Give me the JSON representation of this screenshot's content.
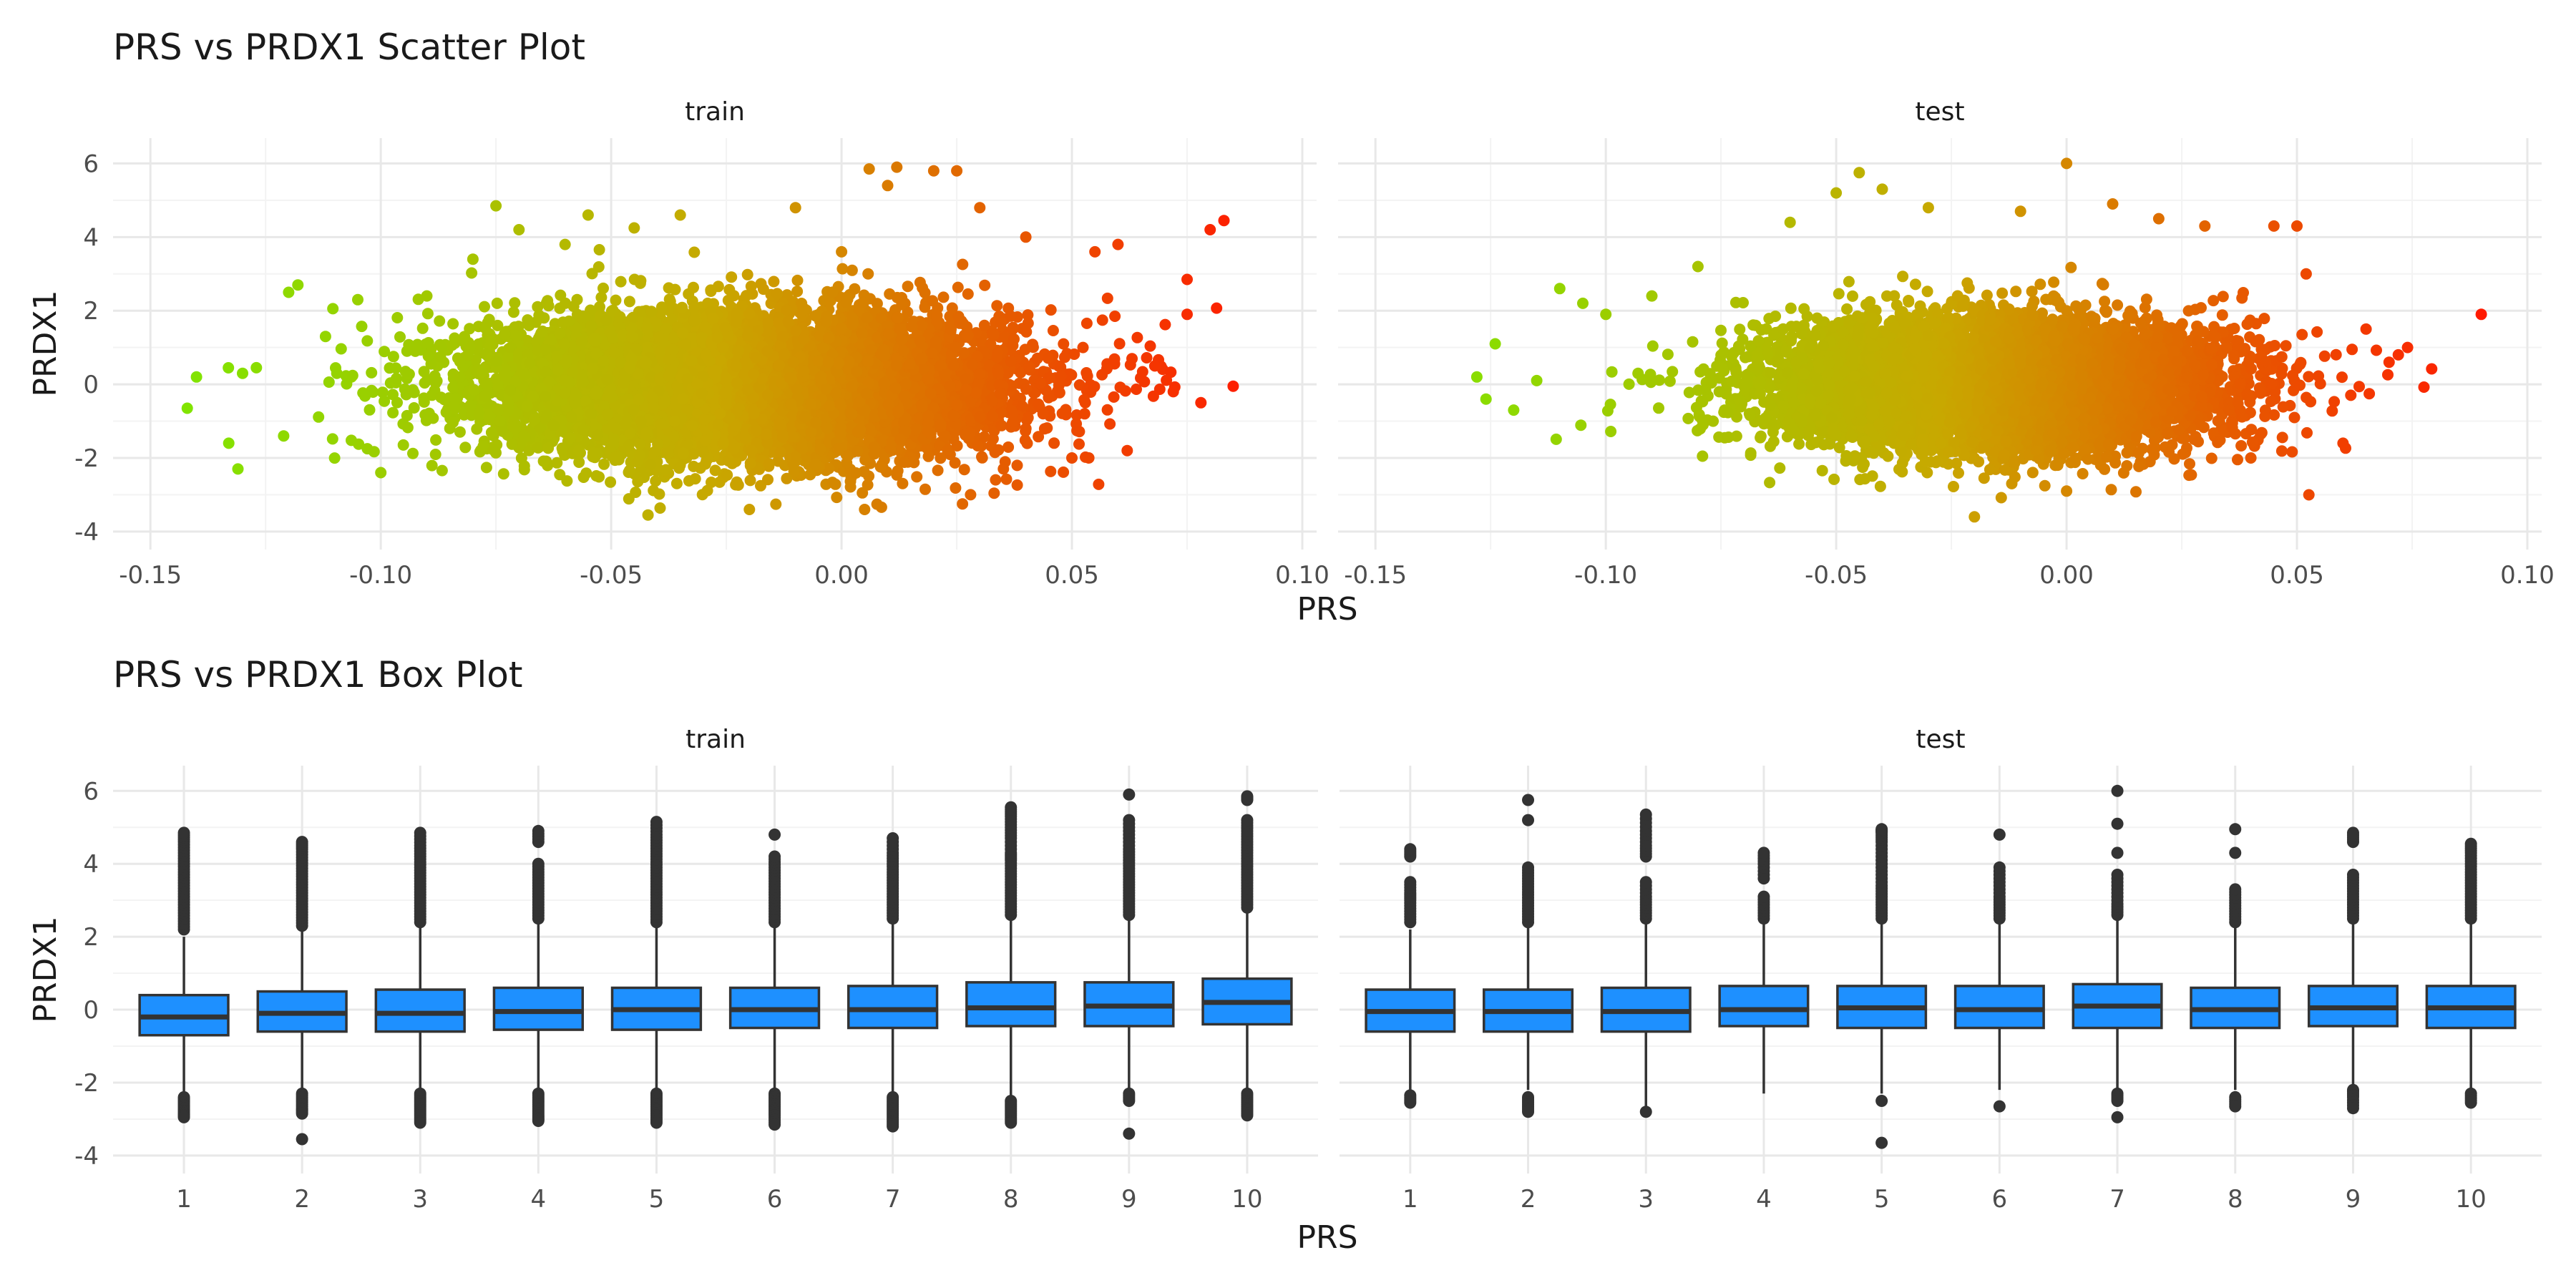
{
  "scatter_title": "PRS vs PRDX1 Scatter Plot",
  "box_title": "PRS vs PRDX1 Box Plot",
  "xlabel": "PRS",
  "ylabel": "PRDX1",
  "colors": {
    "scatter_low": "#7fe600",
    "scatter_mid": "#c8a800",
    "scatter_high": "#ff1a00",
    "box_fill": "#1e90ff",
    "box_line": "#333333",
    "grid_major": "#e8e8e8",
    "grid_minor": "#f3f3f3"
  },
  "chart_data": [
    {
      "type": "scatter",
      "title": "PRS vs PRDX1 Scatter Plot",
      "xlabel": "PRS",
      "ylabel": "PRDX1",
      "xlim": [
        -0.155,
        0.1
      ],
      "ylim": [
        -4.1,
        6.3
      ],
      "x_ticks": [
        "-0.15",
        "-0.10",
        "-0.05",
        "0.00",
        "0.05",
        "0.10"
      ],
      "x_tick_values": [
        -0.15,
        -0.1,
        -0.05,
        0.0,
        0.05,
        0.1
      ],
      "y_ticks": [
        "-4",
        "-2",
        "0",
        "2",
        "4",
        "6"
      ],
      "y_tick_values": [
        -4,
        -2,
        0,
        2,
        4,
        6
      ],
      "color_scale": "gradient green (low PRS) to red (high PRS)",
      "grid": true,
      "facets": [
        {
          "name": "train",
          "x_distribution": {
            "mean": -0.02,
            "sd": 0.028
          },
          "y_distribution": {
            "mean": 0.0,
            "sd": 0.95
          },
          "points": [
            [
              -0.142,
              -0.65
            ],
            [
              -0.14,
              0.2
            ],
            [
              -0.133,
              -1.6
            ],
            [
              -0.131,
              -2.3
            ],
            [
              -0.13,
              0.3
            ],
            [
              -0.127,
              0.45
            ],
            [
              -0.118,
              2.7
            ],
            [
              -0.12,
              2.5
            ],
            [
              -0.112,
              1.3
            ],
            [
              -0.105,
              2.3
            ],
            [
              -0.1,
              -2.4
            ],
            [
              -0.09,
              2.4
            ],
            [
              -0.08,
              3.4
            ],
            [
              -0.075,
              4.85
            ],
            [
              -0.07,
              4.2
            ],
            [
              -0.06,
              3.8
            ],
            [
              -0.055,
              4.6
            ],
            [
              -0.045,
              4.25
            ],
            [
              -0.042,
              -3.55
            ],
            [
              -0.035,
              4.6
            ],
            [
              -0.02,
              -3.4
            ],
            [
              -0.01,
              4.8
            ],
            [
              0.0,
              3.6
            ],
            [
              0.005,
              -3.4
            ],
            [
              0.01,
              5.4
            ],
            [
              0.028,
              -3.0
            ],
            [
              0.03,
              4.8
            ],
            [
              0.04,
              4.0
            ],
            [
              0.05,
              -2.0
            ],
            [
              0.055,
              3.6
            ],
            [
              0.06,
              3.8
            ],
            [
              0.062,
              -1.8
            ],
            [
              0.068,
              0.5
            ],
            [
              0.072,
              -0.2
            ],
            [
              0.075,
              2.85
            ],
            [
              0.075,
              1.9
            ],
            [
              0.078,
              -0.5
            ],
            [
              0.08,
              4.2
            ],
            [
              0.083,
              4.45
            ],
            [
              0.085,
              -0.05
            ],
            [
              0.012,
              5.9
            ],
            [
              0.02,
              5.8
            ],
            [
              0.025,
              5.8
            ],
            [
              0.006,
              5.85
            ]
          ]
        },
        {
          "name": "test",
          "x_distribution": {
            "mean": -0.015,
            "sd": 0.025
          },
          "y_distribution": {
            "mean": 0.0,
            "sd": 0.9
          },
          "points": [
            [
              -0.128,
              0.2
            ],
            [
              -0.126,
              -0.4
            ],
            [
              -0.124,
              1.1
            ],
            [
              -0.12,
              -0.7
            ],
            [
              -0.115,
              0.1
            ],
            [
              -0.11,
              2.6
            ],
            [
              -0.105,
              2.2
            ],
            [
              -0.1,
              1.9
            ],
            [
              -0.09,
              2.4
            ],
            [
              -0.08,
              3.2
            ],
            [
              -0.06,
              4.4
            ],
            [
              -0.05,
              5.2
            ],
            [
              -0.045,
              5.75
            ],
            [
              -0.04,
              5.3
            ],
            [
              -0.03,
              4.8
            ],
            [
              -0.02,
              -3.6
            ],
            [
              -0.01,
              4.7
            ],
            [
              0.0,
              6.0
            ],
            [
              0.0,
              -2.9
            ],
            [
              0.01,
              4.9
            ],
            [
              0.02,
              4.5
            ],
            [
              0.03,
              4.3
            ],
            [
              0.04,
              -2.0
            ],
            [
              0.045,
              4.3
            ],
            [
              0.05,
              4.3
            ],
            [
              0.052,
              3.0
            ],
            [
              0.06,
              -1.6
            ],
            [
              0.065,
              1.5
            ],
            [
              0.07,
              0.6
            ],
            [
              0.072,
              0.8
            ],
            [
              0.074,
              1.0
            ],
            [
              0.09,
              1.9
            ]
          ]
        }
      ]
    },
    {
      "type": "box",
      "title": "PRS vs PRDX1 Box Plot",
      "xlabel": "PRS",
      "ylabel": "PRDX1",
      "categories": [
        "1",
        "2",
        "3",
        "4",
        "5",
        "6",
        "7",
        "8",
        "9",
        "10"
      ],
      "ylim": [
        -4.1,
        6.3
      ],
      "y_ticks": [
        "-4",
        "-2",
        "0",
        "2",
        "4",
        "6"
      ],
      "y_tick_values": [
        -4,
        -2,
        0,
        2,
        4,
        6
      ],
      "grid": true,
      "facets": [
        {
          "name": "train",
          "boxes": [
            {
              "q1": -0.7,
              "median": -0.2,
              "q3": 0.4,
              "whisker_low": -2.3,
              "whisker_high": 2.0,
              "outliers": [
                2.2,
                2.5,
                2.8,
                3.1,
                3.4,
                3.7,
                4.0,
                4.3,
                4.6,
                4.85,
                -2.4,
                -2.55,
                -2.7,
                -2.85,
                -2.95
              ]
            },
            {
              "q1": -0.6,
              "median": -0.1,
              "q3": 0.5,
              "whisker_low": -2.2,
              "whisker_high": 2.2,
              "outliers": [
                2.3,
                2.6,
                2.9,
                3.2,
                3.5,
                3.8,
                4.1,
                4.4,
                4.6,
                -2.3,
                -2.5,
                -2.7,
                -2.85,
                -3.55
              ]
            },
            {
              "q1": -0.6,
              "median": -0.1,
              "q3": 0.55,
              "whisker_low": -2.2,
              "whisker_high": 2.3,
              "outliers": [
                2.4,
                2.7,
                3.0,
                3.3,
                3.6,
                3.9,
                4.2,
                4.5,
                4.85,
                -2.3,
                -2.5,
                -2.7,
                -2.9,
                -3.1
              ]
            },
            {
              "q1": -0.55,
              "median": -0.05,
              "q3": 0.6,
              "whisker_low": -2.2,
              "whisker_high": 2.4,
              "outliers": [
                2.5,
                2.8,
                3.1,
                3.4,
                3.7,
                4.0,
                4.6,
                4.9,
                -2.3,
                -2.5,
                -2.7,
                -2.9,
                -3.05
              ]
            },
            {
              "q1": -0.55,
              "median": 0.0,
              "q3": 0.6,
              "whisker_low": -2.2,
              "whisker_high": 2.3,
              "outliers": [
                2.4,
                2.7,
                3.0,
                3.3,
                3.6,
                3.9,
                4.2,
                4.5,
                4.8,
                5.15,
                -2.3,
                -2.5,
                -2.7,
                -2.9,
                -3.1
              ]
            },
            {
              "q1": -0.5,
              "median": 0.0,
              "q3": 0.6,
              "whisker_low": -2.2,
              "whisker_high": 2.3,
              "outliers": [
                2.4,
                2.7,
                3.0,
                3.3,
                3.6,
                3.9,
                4.2,
                4.8,
                -2.3,
                -2.5,
                -2.7,
                -2.9,
                -3.15
              ]
            },
            {
              "q1": -0.5,
              "median": 0.0,
              "q3": 0.65,
              "whisker_low": -2.3,
              "whisker_high": 2.4,
              "outliers": [
                2.5,
                2.8,
                3.1,
                3.4,
                3.7,
                4.0,
                4.3,
                4.7,
                -2.4,
                -2.6,
                -2.8,
                -3.0,
                -3.2
              ]
            },
            {
              "q1": -0.45,
              "median": 0.05,
              "q3": 0.75,
              "whisker_low": -2.4,
              "whisker_high": 2.5,
              "outliers": [
                2.6,
                2.9,
                3.2,
                3.5,
                3.8,
                4.1,
                4.3,
                4.7,
                5.0,
                5.3,
                5.55,
                -2.5,
                -2.7,
                -2.9,
                -3.1
              ]
            },
            {
              "q1": -0.45,
              "median": 0.1,
              "q3": 0.75,
              "whisker_low": -2.2,
              "whisker_high": 2.5,
              "outliers": [
                2.6,
                2.9,
                3.2,
                3.5,
                3.8,
                4.1,
                4.4,
                4.8,
                5.2,
                5.9,
                -2.3,
                -2.5,
                -3.4
              ]
            },
            {
              "q1": -0.4,
              "median": 0.2,
              "q3": 0.85,
              "whisker_low": -2.2,
              "whisker_high": 2.7,
              "outliers": [
                2.8,
                3.1,
                3.4,
                3.7,
                4.0,
                4.3,
                4.6,
                4.9,
                5.2,
                5.75,
                5.85,
                -2.3,
                -2.5,
                -2.7,
                -2.9
              ]
            }
          ]
        },
        {
          "name": "test",
          "boxes": [
            {
              "q1": -0.6,
              "median": -0.05,
              "q3": 0.55,
              "whisker_low": -2.2,
              "whisker_high": 2.2,
              "outliers": [
                2.4,
                2.7,
                3.0,
                3.2,
                3.5,
                4.2,
                4.4,
                -2.35,
                -2.55
              ]
            },
            {
              "q1": -0.6,
              "median": -0.05,
              "q3": 0.55,
              "whisker_low": -2.2,
              "whisker_high": 2.3,
              "outliers": [
                2.4,
                2.7,
                3.0,
                3.3,
                3.6,
                3.9,
                5.2,
                5.75,
                -2.4,
                -2.6,
                -2.8
              ]
            },
            {
              "q1": -0.6,
              "median": -0.05,
              "q3": 0.6,
              "whisker_low": -2.7,
              "whisker_high": 2.4,
              "outliers": [
                2.5,
                2.8,
                3.1,
                3.5,
                4.2,
                4.5,
                4.9,
                5.35,
                -2.8
              ]
            },
            {
              "q1": -0.45,
              "median": 0.0,
              "q3": 0.65,
              "whisker_low": -2.3,
              "whisker_high": 2.4,
              "outliers": [
                2.5,
                2.8,
                3.1,
                3.6,
                4.0,
                4.3
              ]
            },
            {
              "q1": -0.5,
              "median": 0.05,
              "q3": 0.65,
              "whisker_low": -2.3,
              "whisker_high": 2.4,
              "outliers": [
                2.5,
                2.8,
                3.1,
                3.4,
                3.8,
                4.2,
                4.6,
                4.85,
                4.95,
                -2.5,
                -3.65
              ]
            },
            {
              "q1": -0.5,
              "median": 0.0,
              "q3": 0.65,
              "whisker_low": -2.2,
              "whisker_high": 2.4,
              "outliers": [
                2.5,
                2.8,
                3.1,
                3.5,
                3.9,
                4.8,
                -2.65
              ]
            },
            {
              "q1": -0.5,
              "median": 0.1,
              "q3": 0.7,
              "whisker_low": -2.3,
              "whisker_high": 2.5,
              "outliers": [
                2.6,
                2.9,
                3.3,
                3.7,
                4.3,
                5.1,
                6.0,
                -2.3,
                -2.5,
                -2.95
              ]
            },
            {
              "q1": -0.5,
              "median": 0.0,
              "q3": 0.6,
              "whisker_low": -2.2,
              "whisker_high": 2.3,
              "outliers": [
                2.4,
                2.7,
                3.0,
                3.3,
                4.3,
                4.95,
                -2.4,
                -2.65
              ]
            },
            {
              "q1": -0.45,
              "median": 0.05,
              "q3": 0.65,
              "whisker_low": -2.1,
              "whisker_high": 2.4,
              "outliers": [
                2.5,
                2.8,
                3.1,
                3.4,
                3.7,
                4.6,
                4.85,
                -2.2,
                -2.4,
                -2.7
              ]
            },
            {
              "q1": -0.5,
              "median": 0.05,
              "q3": 0.65,
              "whisker_low": -2.2,
              "whisker_high": 2.4,
              "outliers": [
                2.5,
                2.8,
                3.1,
                3.4,
                3.7,
                4.0,
                4.3,
                4.55,
                -2.3,
                -2.55
              ]
            }
          ]
        }
      ]
    }
  ]
}
